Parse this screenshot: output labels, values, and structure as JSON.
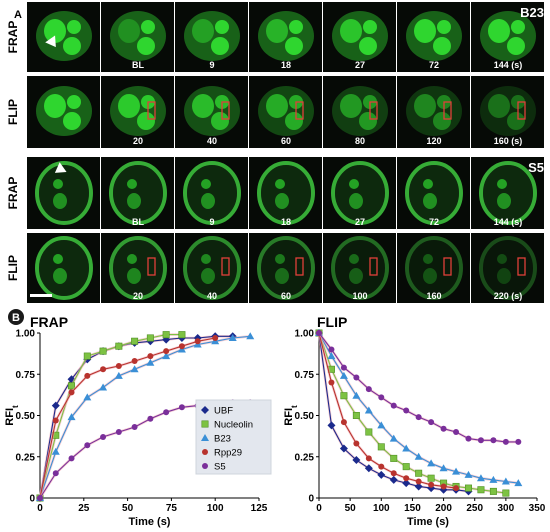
{
  "panel_a": {
    "letter": "A",
    "b23": {
      "name": "B23",
      "frap_label": "FRAP",
      "flip_label": "FLIP",
      "frap_times": [
        "BL",
        "9",
        "18",
        "27",
        "72",
        "144 (s)"
      ],
      "flip_times": [
        "20",
        "40",
        "60",
        "80",
        "120",
        "160 (s)"
      ]
    },
    "s5": {
      "name": "S5",
      "frap_label": "FRAP",
      "flip_label": "FLIP",
      "frap_times": [
        "BL",
        "9",
        "18",
        "27",
        "72",
        "144 (s)"
      ],
      "flip_times": [
        "20",
        "40",
        "60",
        "100",
        "160",
        "220 (s)"
      ]
    }
  },
  "panel_b": {
    "letter": "B"
  },
  "colors": {
    "UBF": "#1b2a8c",
    "Nucleolin": "#7dc243",
    "B23": "#3a8fd6",
    "Rpp29": "#b8332e",
    "S5": "#7a2f9a",
    "cell_green": "#2fd62f",
    "bleach_box": "#e0403a"
  },
  "chart_data": [
    {
      "type": "line",
      "title": "FRAP",
      "xlabel": "Time (s)",
      "ylabel": "RFIt",
      "xlim": [
        0,
        125
      ],
      "ylim": [
        0,
        1.0
      ],
      "xticks": [
        "0",
        "25",
        "50",
        "75",
        "100",
        "125"
      ],
      "yticks": [
        "0",
        "0.25",
        "0.50",
        "0.75",
        "1.00"
      ],
      "legend": {
        "placement": "bottom-right",
        "entries": [
          "UBF",
          "Nucleolin",
          "B23",
          "Rpp29",
          "S5"
        ]
      },
      "series": [
        {
          "name": "UBF",
          "marker": "diamond",
          "x": [
            0,
            9,
            18,
            27,
            36,
            45,
            54,
            63,
            72,
            81,
            90,
            100,
            110
          ],
          "y": [
            0,
            0.56,
            0.72,
            0.84,
            0.89,
            0.92,
            0.94,
            0.95,
            0.96,
            0.97,
            0.97,
            0.98,
            0.98
          ]
        },
        {
          "name": "Nucleolin",
          "marker": "square",
          "x": [
            0,
            9,
            18,
            27,
            36,
            45,
            54,
            63,
            72,
            81
          ],
          "y": [
            0,
            0.38,
            0.68,
            0.86,
            0.89,
            0.92,
            0.95,
            0.97,
            0.99,
            0.99
          ]
        },
        {
          "name": "B23",
          "marker": "triangle",
          "x": [
            0,
            9,
            18,
            27,
            36,
            45,
            54,
            63,
            72,
            81,
            90,
            100,
            110,
            120
          ],
          "y": [
            0,
            0.28,
            0.49,
            0.61,
            0.67,
            0.74,
            0.78,
            0.82,
            0.86,
            0.9,
            0.93,
            0.95,
            0.97,
            0.98
          ]
        },
        {
          "name": "Rpp29",
          "marker": "circle",
          "x": [
            0,
            9,
            18,
            27,
            36,
            45,
            54,
            63,
            72,
            81,
            90,
            100
          ],
          "y": [
            0,
            0.47,
            0.64,
            0.74,
            0.78,
            0.8,
            0.83,
            0.86,
            0.89,
            0.92,
            0.95,
            0.97
          ]
        },
        {
          "name": "S5",
          "marker": "circle",
          "x": [
            0,
            9,
            18,
            27,
            36,
            45,
            54,
            63,
            72,
            81,
            90,
            100,
            110,
            120
          ],
          "y": [
            0,
            0.15,
            0.24,
            0.32,
            0.37,
            0.4,
            0.43,
            0.48,
            0.52,
            0.55,
            0.56,
            0.57,
            0.58,
            0.58
          ]
        }
      ]
    },
    {
      "type": "line",
      "title": "FLIP",
      "xlabel": "Time (s)",
      "ylabel": "RFIt",
      "xlim": [
        0,
        350
      ],
      "ylim": [
        0,
        1.0
      ],
      "xticks": [
        "0",
        "50",
        "100",
        "150",
        "200",
        "250",
        "300",
        "350"
      ],
      "yticks": [
        "0",
        "0.25",
        "0.50",
        "0.75",
        "1.00"
      ],
      "series": [
        {
          "name": "UBF",
          "marker": "diamond",
          "x": [
            0,
            20,
            40,
            60,
            80,
            100,
            120,
            140,
            160,
            180,
            200,
            220,
            240
          ],
          "y": [
            1.0,
            0.44,
            0.3,
            0.23,
            0.18,
            0.14,
            0.11,
            0.09,
            0.07,
            0.06,
            0.05,
            0.05,
            0.04
          ]
        },
        {
          "name": "Nucleolin",
          "marker": "square",
          "x": [
            0,
            20,
            40,
            60,
            80,
            100,
            120,
            140,
            160,
            180,
            200,
            220,
            240,
            260,
            280,
            300
          ],
          "y": [
            1.0,
            0.78,
            0.62,
            0.5,
            0.4,
            0.31,
            0.24,
            0.19,
            0.15,
            0.12,
            0.09,
            0.07,
            0.06,
            0.05,
            0.04,
            0.03
          ]
        },
        {
          "name": "B23",
          "marker": "triangle",
          "x": [
            0,
            20,
            40,
            60,
            80,
            100,
            120,
            140,
            160,
            180,
            200,
            220,
            240,
            260,
            280,
            300,
            320
          ],
          "y": [
            1.0,
            0.86,
            0.74,
            0.62,
            0.53,
            0.44,
            0.36,
            0.3,
            0.25,
            0.21,
            0.18,
            0.16,
            0.14,
            0.12,
            0.11,
            0.1,
            0.09
          ]
        },
        {
          "name": "Rpp29",
          "marker": "circle",
          "x": [
            0,
            20,
            40,
            60,
            80,
            100,
            120,
            140,
            160,
            180,
            200,
            220
          ],
          "y": [
            1.0,
            0.7,
            0.46,
            0.33,
            0.24,
            0.19,
            0.15,
            0.12,
            0.1,
            0.08,
            0.07,
            0.06
          ]
        },
        {
          "name": "S5",
          "marker": "circle",
          "x": [
            0,
            20,
            40,
            60,
            80,
            100,
            120,
            140,
            160,
            180,
            200,
            220,
            240,
            260,
            280,
            300,
            320
          ],
          "y": [
            1.0,
            0.9,
            0.79,
            0.73,
            0.66,
            0.61,
            0.56,
            0.53,
            0.49,
            0.46,
            0.42,
            0.4,
            0.36,
            0.35,
            0.35,
            0.34,
            0.34
          ]
        }
      ]
    }
  ]
}
